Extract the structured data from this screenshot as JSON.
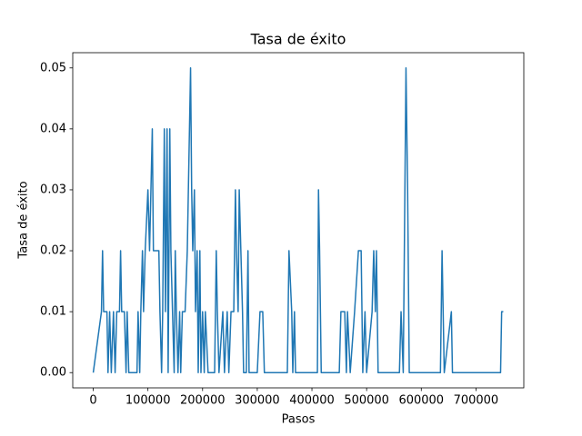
{
  "chart_data": {
    "type": "line",
    "title": "Tasa de éxito",
    "xlabel": "Pasos",
    "ylabel": "Tasa de éxito",
    "color": "#1f77b4",
    "x": [
      0,
      15000,
      17000,
      19000,
      25000,
      27000,
      30000,
      33000,
      37000,
      40000,
      43000,
      48000,
      50000,
      52000,
      57000,
      60000,
      62000,
      65000,
      80000,
      82000,
      85000,
      87000,
      90000,
      92000,
      95000,
      100000,
      103000,
      108000,
      110000,
      120000,
      122000,
      125000,
      127000,
      130000,
      132000,
      135000,
      137000,
      140000,
      142000,
      145000,
      148000,
      150000,
      152000,
      155000,
      158000,
      160000,
      163000,
      168000,
      172000,
      176000,
      178000,
      180000,
      182000,
      185000,
      187000,
      190000,
      192000,
      195000,
      197000,
      200000,
      203000,
      205000,
      210000,
      222000,
      225000,
      227000,
      230000,
      237000,
      240000,
      245000,
      248000,
      252000,
      257000,
      260000,
      262000,
      265000,
      267000,
      270000,
      273000,
      275000,
      280000,
      283000,
      285000,
      300000,
      305000,
      310000,
      313000,
      355000,
      358000,
      363000,
      365000,
      368000,
      370000,
      410000,
      412000,
      414000,
      417000,
      450000,
      453000,
      460000,
      463000,
      465000,
      470000,
      478000,
      485000,
      490000,
      493000,
      497000,
      500000,
      510000,
      513000,
      516000,
      518000,
      521000,
      560000,
      563000,
      567000,
      570000,
      572000,
      575000,
      578000,
      635000,
      638000,
      640000,
      642000,
      655000,
      657000,
      745000,
      747000,
      750000
    ],
    "values": [
      0,
      0.01,
      0.02,
      0.01,
      0.01,
      0,
      0.01,
      0,
      0.01,
      0,
      0.01,
      0.01,
      0.02,
      0.01,
      0.01,
      0,
      0.01,
      0,
      0,
      0.01,
      0,
      0.01,
      0.02,
      0.01,
      0.02,
      0.03,
      0.02,
      0.04,
      0.02,
      0.02,
      0.01,
      0,
      0.01,
      0.04,
      0.01,
      0.04,
      0,
      0.04,
      0.02,
      0.01,
      0,
      0.02,
      0.01,
      0,
      0.01,
      0,
      0.01,
      0.01,
      0.02,
      0.04,
      0.05,
      0.03,
      0.02,
      0.03,
      0.01,
      0.02,
      0,
      0.02,
      0,
      0.01,
      0,
      0.01,
      0,
      0,
      0.02,
      0.01,
      0,
      0.01,
      0,
      0.01,
      0,
      0.01,
      0.01,
      0.03,
      0.02,
      0.01,
      0.03,
      0.02,
      0.01,
      0,
      0,
      0.02,
      0,
      0,
      0.01,
      0.01,
      0,
      0,
      0.02,
      0.01,
      0,
      0.01,
      0,
      0,
      0.03,
      0.02,
      0,
      0,
      0.01,
      0.01,
      0,
      0.01,
      0,
      0.01,
      0.02,
      0.02,
      0,
      0.01,
      0,
      0.01,
      0.02,
      0.01,
      0.02,
      0,
      0,
      0.01,
      0,
      0.03,
      0.05,
      0.03,
      0,
      0,
      0.02,
      0.01,
      0,
      0.01,
      0,
      0,
      0.01,
      0.01
    ],
    "xlim": [
      -37500,
      787500
    ],
    "ylim": [
      -0.0025,
      0.0525
    ],
    "xticks": [
      0,
      100000,
      200000,
      300000,
      400000,
      500000,
      600000,
      700000
    ],
    "yticks": [
      {
        "value": 0,
        "label": "0.00"
      },
      {
        "value": 0.01,
        "label": "0.01"
      },
      {
        "value": 0.02,
        "label": "0.02"
      },
      {
        "value": 0.03,
        "label": "0.03"
      },
      {
        "value": 0.04,
        "label": "0.04"
      },
      {
        "value": 0.05,
        "label": "0.05"
      }
    ]
  }
}
